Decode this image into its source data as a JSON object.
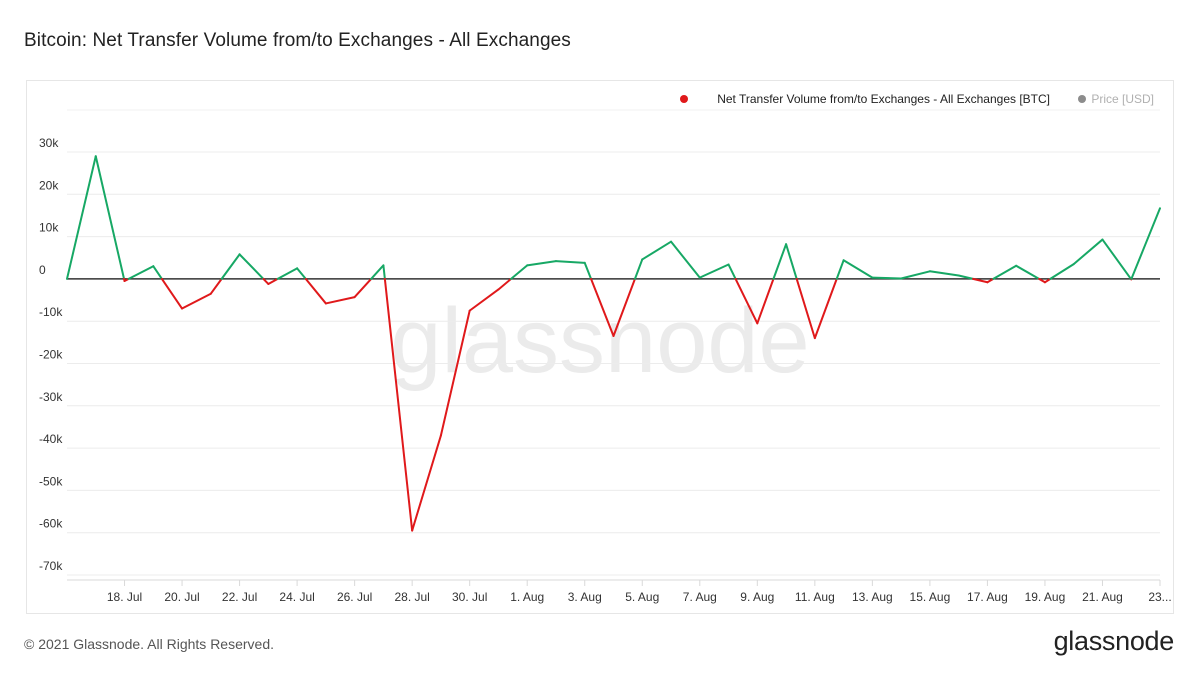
{
  "title": "Bitcoin: Net Transfer Volume from/to Exchanges - All Exchanges",
  "footer": "© 2021 Glassnode. All Rights Reserved.",
  "logo_text": "glassnode",
  "watermark": "glassnode",
  "chart_data": {
    "type": "line",
    "title": "Bitcoin: Net Transfer Volume from/to Exchanges - All Exchanges",
    "xlabel": "",
    "ylabel": "",
    "ylim": [
      -70000,
      30000
    ],
    "grid": true,
    "legend_placement": "top-right",
    "legend": [
      {
        "label": "Net Transfer Volume from/to Exchanges - All Exchanges [BTC]",
        "color": "#e0191b",
        "active": true
      },
      {
        "label": "Price [USD]",
        "color": "#8c8c8c",
        "active": false
      }
    ],
    "positive_color": "#17a865",
    "negative_color": "#e0191b",
    "y_ticks": [
      {
        "value": 30000,
        "label": "30k"
      },
      {
        "value": 20000,
        "label": "20k"
      },
      {
        "value": 10000,
        "label": "10k"
      },
      {
        "value": 0,
        "label": "0"
      },
      {
        "value": -10000,
        "label": "-10k"
      },
      {
        "value": -20000,
        "label": "-20k"
      },
      {
        "value": -30000,
        "label": "-30k"
      },
      {
        "value": -40000,
        "label": "-40k"
      },
      {
        "value": -50000,
        "label": "-50k"
      },
      {
        "value": -60000,
        "label": "-60k"
      },
      {
        "value": -70000,
        "label": "-70k"
      }
    ],
    "x_ticks": [
      {
        "index": 2,
        "label": "18. Jul"
      },
      {
        "index": 4,
        "label": "20. Jul"
      },
      {
        "index": 6,
        "label": "22. Jul"
      },
      {
        "index": 8,
        "label": "24. Jul"
      },
      {
        "index": 10,
        "label": "26. Jul"
      },
      {
        "index": 12,
        "label": "28. Jul"
      },
      {
        "index": 14,
        "label": "30. Jul"
      },
      {
        "index": 16,
        "label": "1. Aug"
      },
      {
        "index": 18,
        "label": "3. Aug"
      },
      {
        "index": 20,
        "label": "5. Aug"
      },
      {
        "index": 22,
        "label": "7. Aug"
      },
      {
        "index": 24,
        "label": "9. Aug"
      },
      {
        "index": 26,
        "label": "11. Aug"
      },
      {
        "index": 28,
        "label": "13. Aug"
      },
      {
        "index": 30,
        "label": "15. Aug"
      },
      {
        "index": 32,
        "label": "17. Aug"
      },
      {
        "index": 34,
        "label": "19. Aug"
      },
      {
        "index": 36,
        "label": "21. Aug"
      },
      {
        "index": 38,
        "label": "23..."
      }
    ],
    "series": [
      {
        "name": "Net Transfer Volume from/to Exchanges - All Exchanges [BTC]",
        "x": [
          "16. Jul",
          "17. Jul",
          "18. Jul",
          "19. Jul",
          "20. Jul",
          "21. Jul",
          "22. Jul",
          "23. Jul",
          "24. Jul",
          "25. Jul",
          "26. Jul",
          "27. Jul",
          "28. Jul",
          "29. Jul",
          "30. Jul",
          "31. Jul",
          "1. Aug",
          "2. Aug",
          "3. Aug",
          "4. Aug",
          "5. Aug",
          "6. Aug",
          "7. Aug",
          "8. Aug",
          "9. Aug",
          "10. Aug",
          "11. Aug",
          "12. Aug",
          "13. Aug",
          "14. Aug",
          "15. Aug",
          "16. Aug",
          "17. Aug",
          "18. Aug",
          "19. Aug",
          "20. Aug",
          "21. Aug",
          "22. Aug",
          "23. Aug"
        ],
        "values": [
          0,
          29000,
          -500,
          3000,
          -7000,
          -3500,
          5800,
          -1200,
          2500,
          -5800,
          -4300,
          3200,
          -59500,
          -37000,
          -7500,
          -2500,
          3200,
          4200,
          3800,
          -13500,
          4600,
          8800,
          300,
          3400,
          -10500,
          8200,
          -14000,
          4400,
          300,
          100,
          1800,
          800,
          -800,
          3100,
          -800,
          3500,
          9300,
          -100,
          16700
        ]
      }
    ]
  }
}
